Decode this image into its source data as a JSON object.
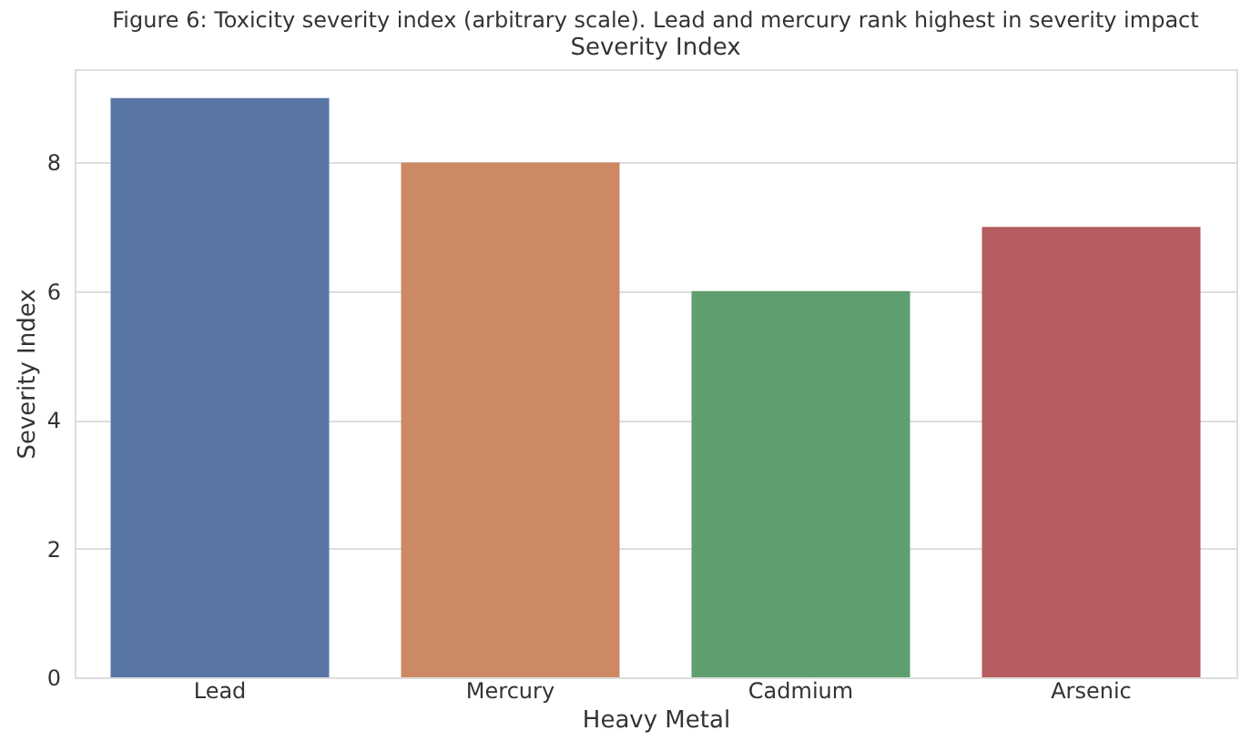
{
  "chart_data": {
    "type": "bar",
    "title": "Figure 6: Toxicity severity index (arbitrary scale). Lead and mercury rank highest in severity impact",
    "subtitle": "Severity Index",
    "xlabel": "Heavy Metal",
    "ylabel": "Severity Index",
    "categories": [
      "Lead",
      "Mercury",
      "Cadmium",
      "Arsenic"
    ],
    "values": [
      9,
      8,
      6,
      7
    ],
    "colors": [
      "#5875a4",
      "#cc8963",
      "#5f9e6e",
      "#b55d60"
    ],
    "ylim": [
      0,
      9.45
    ],
    "yticks": [
      0,
      2,
      4,
      6,
      8
    ],
    "grid": "y"
  }
}
